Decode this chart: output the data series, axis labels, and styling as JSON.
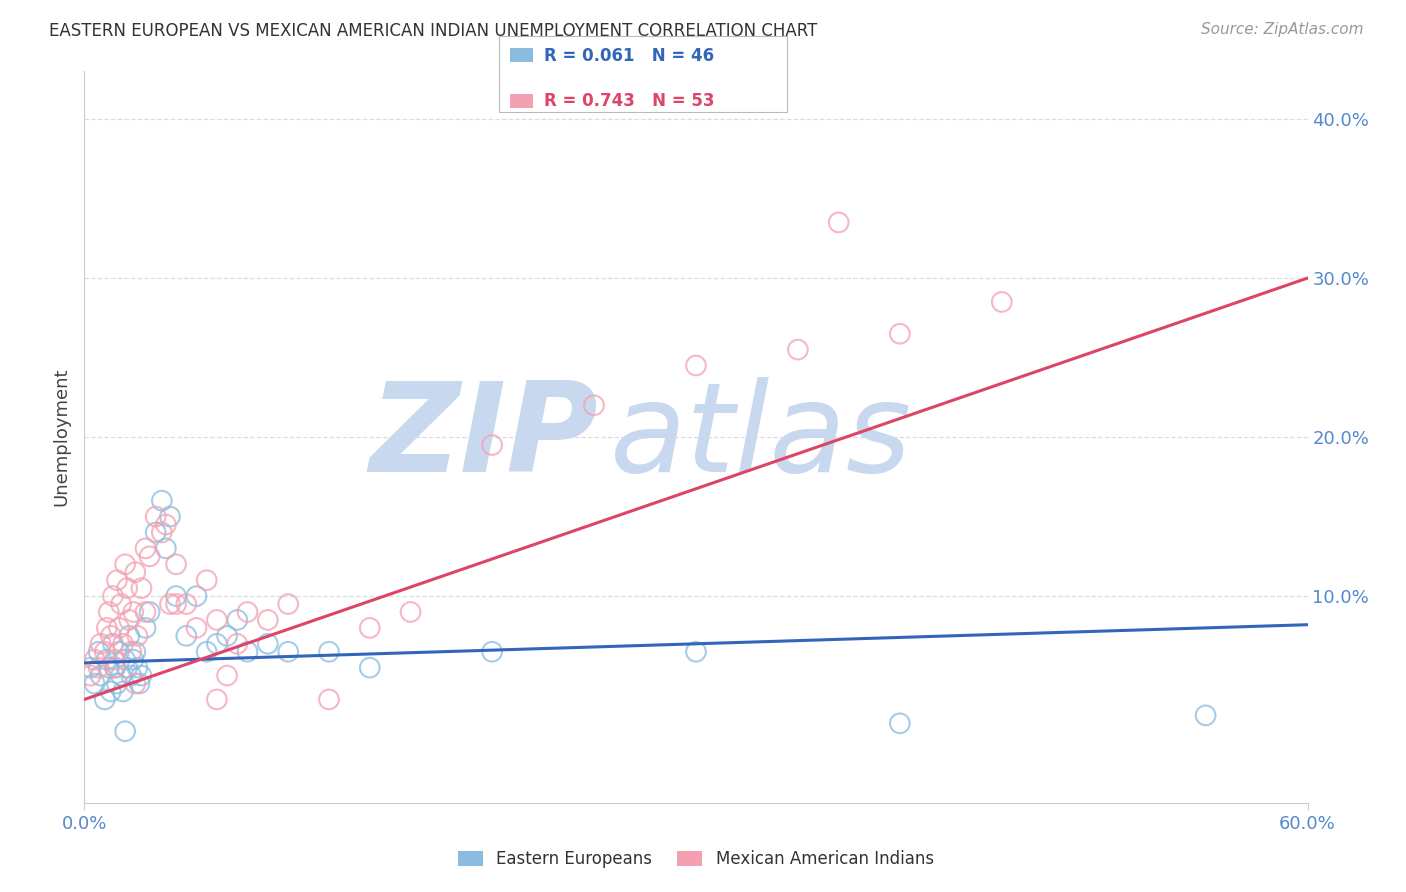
{
  "title": "EASTERN EUROPEAN VS MEXICAN AMERICAN INDIAN UNEMPLOYMENT CORRELATION CHART",
  "source": "Source: ZipAtlas.com",
  "ylabel": "Unemployment",
  "xlim": [
    0,
    60
  ],
  "ylim": [
    -3,
    43
  ],
  "xtick_vals": [
    0,
    60
  ],
  "xtick_labels": [
    "0.0%",
    "60.0%"
  ],
  "ytick_vals": [
    10,
    20,
    30,
    40
  ],
  "ytick_labels": [
    "10.0%",
    "20.0%",
    "30.0%",
    "40.0%"
  ],
  "legend1_R": "0.061",
  "legend1_N": "46",
  "legend2_R": "0.743",
  "legend2_N": "53",
  "blue_color": "#89BCDF",
  "pink_color": "#F4A0B0",
  "blue_edge": "#89BCDF",
  "pink_edge": "#F4A0B0",
  "trend_blue": "#3366BB",
  "trend_pink": "#DD4466",
  "tick_label_color": "#5588CC",
  "watermark_zip": "ZIP",
  "watermark_atlas": "atlas",
  "watermark_color": "#C8D8EE",
  "grid_color": "#DDDDDD",
  "blue_trend_x": [
    0,
    60
  ],
  "blue_trend_y": [
    5.8,
    8.2
  ],
  "pink_trend_x": [
    0,
    60
  ],
  "pink_trend_y": [
    3.5,
    30.0
  ],
  "blue_scatter_x": [
    0.3,
    0.5,
    0.7,
    0.8,
    1.0,
    1.1,
    1.2,
    1.3,
    1.4,
    1.5,
    1.6,
    1.7,
    1.8,
    1.9,
    2.0,
    2.1,
    2.2,
    2.3,
    2.4,
    2.5,
    2.6,
    2.7,
    2.8,
    3.0,
    3.2,
    3.5,
    3.8,
    4.0,
    4.2,
    4.5,
    5.0,
    5.5,
    6.0,
    6.5,
    7.0,
    7.5,
    8.0,
    9.0,
    10.0,
    12.0,
    14.0,
    20.0,
    30.0,
    40.0,
    55.0,
    2.0
  ],
  "blue_scatter_y": [
    5.5,
    4.5,
    6.5,
    5.0,
    3.5,
    6.0,
    5.5,
    4.0,
    7.0,
    5.5,
    4.5,
    6.5,
    5.0,
    4.0,
    6.0,
    5.5,
    7.5,
    5.0,
    6.0,
    6.5,
    5.5,
    4.5,
    5.0,
    8.0,
    9.0,
    14.0,
    16.0,
    13.0,
    15.0,
    10.0,
    7.5,
    10.0,
    6.5,
    7.0,
    7.5,
    8.5,
    6.5,
    7.0,
    6.5,
    6.5,
    5.5,
    6.5,
    6.5,
    2.0,
    2.5,
    1.5
  ],
  "pink_scatter_x": [
    0.3,
    0.5,
    0.7,
    0.8,
    1.0,
    1.1,
    1.2,
    1.3,
    1.4,
    1.5,
    1.6,
    1.7,
    1.8,
    1.9,
    2.0,
    2.1,
    2.2,
    2.3,
    2.4,
    2.5,
    2.6,
    2.8,
    3.0,
    3.2,
    3.5,
    3.8,
    4.0,
    4.2,
    4.5,
    5.0,
    5.5,
    6.0,
    6.5,
    7.0,
    7.5,
    8.0,
    9.0,
    10.0,
    12.0,
    14.0,
    16.0,
    20.0,
    25.0,
    30.0,
    35.0,
    40.0,
    45.0,
    37.0,
    1.5,
    3.0,
    4.5,
    6.5,
    2.5
  ],
  "pink_scatter_y": [
    5.0,
    6.0,
    5.5,
    7.0,
    6.5,
    8.0,
    9.0,
    7.5,
    10.0,
    6.0,
    11.0,
    8.0,
    9.5,
    7.0,
    12.0,
    10.5,
    8.5,
    6.5,
    9.0,
    11.5,
    7.5,
    10.5,
    13.0,
    12.5,
    15.0,
    14.0,
    14.5,
    9.5,
    12.0,
    9.5,
    8.0,
    11.0,
    3.5,
    5.0,
    7.0,
    9.0,
    8.5,
    9.5,
    3.5,
    8.0,
    9.0,
    19.5,
    22.0,
    24.5,
    25.5,
    26.5,
    28.5,
    33.5,
    5.5,
    9.0,
    9.5,
    8.5,
    4.5
  ]
}
